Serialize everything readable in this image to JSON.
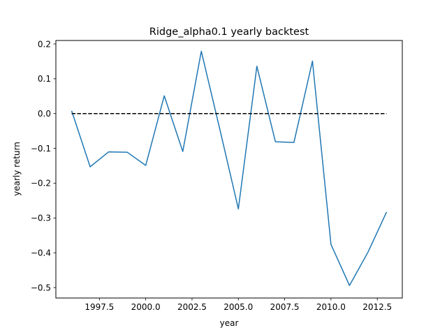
{
  "chart_data": {
    "type": "line",
    "title": "Ridge_alpha0.1 yearly backtest",
    "xlabel": "year",
    "ylabel": "yearly return",
    "xlim": [
      1995.15,
      2013.85
    ],
    "ylim": [
      -0.53,
      0.21
    ],
    "xticks": [
      1997.5,
      2000.0,
      2002.5,
      2005.0,
      2007.5,
      2010.0,
      2012.5
    ],
    "xtick_labels": [
      "1997.5",
      "2000.0",
      "2002.5",
      "2005.0",
      "2007.5",
      "2010.0",
      "2012.5"
    ],
    "yticks": [
      0.2,
      0.1,
      0.0,
      -0.1,
      -0.2,
      -0.3,
      -0.4,
      -0.5
    ],
    "ytick_labels": [
      "0.2",
      "0.1",
      "0.0",
      "−0.1",
      "−0.2",
      "−0.3",
      "−0.4",
      "−0.5"
    ],
    "grid": false,
    "legend": "none",
    "series": [
      {
        "color": "#1f77b4",
        "style": "solid",
        "x": [
          1996,
          1997,
          1998,
          1999,
          2000,
          2001,
          2002,
          2003,
          2004,
          2005,
          2006,
          2007,
          2008,
          2009,
          2010,
          2011,
          2012,
          2013
        ],
        "y": [
          0.008,
          -0.153,
          -0.11,
          -0.111,
          -0.149,
          0.051,
          -0.109,
          0.179,
          -0.045,
          -0.274,
          0.136,
          -0.081,
          -0.083,
          0.151,
          -0.376,
          -0.494,
          -0.398,
          -0.283
        ]
      },
      {
        "color": "#000000",
        "style": "dashed",
        "x": [
          1996,
          2013
        ],
        "y": [
          0.0,
          0.0
        ]
      }
    ]
  }
}
